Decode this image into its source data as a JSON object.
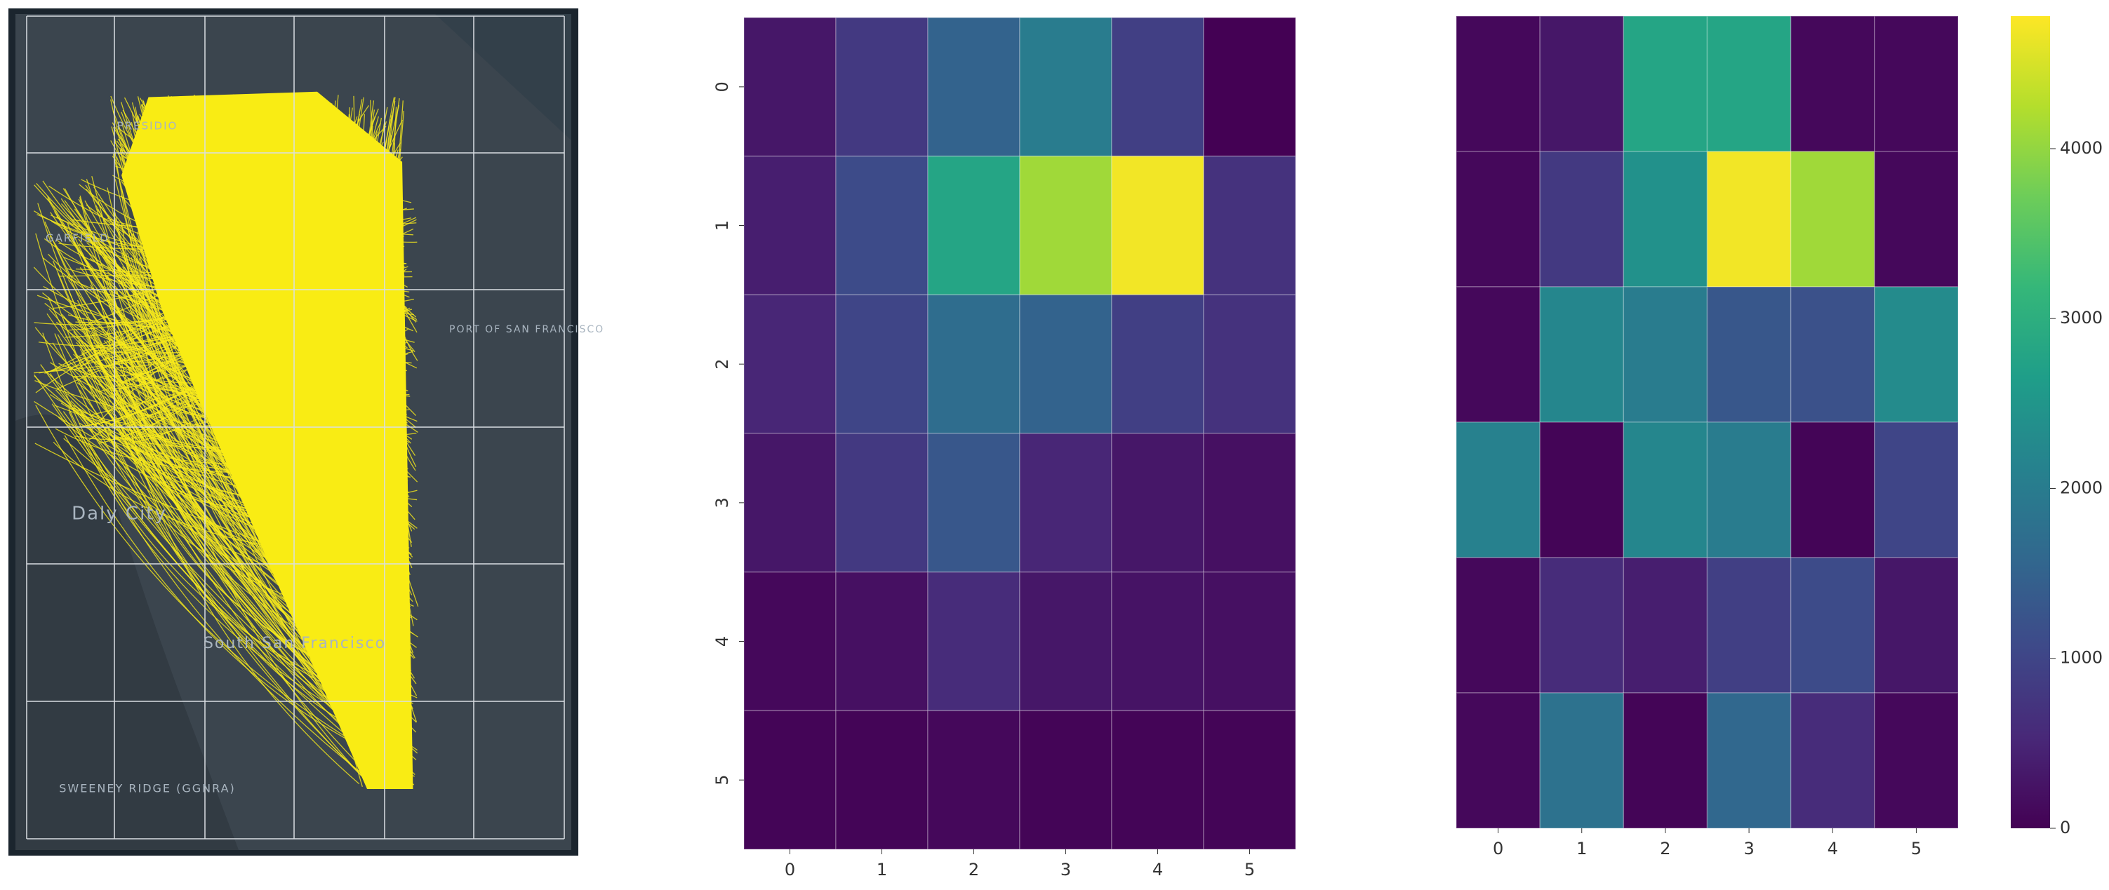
{
  "chart_data": [
    {
      "type": "map",
      "labels": [
        "PRESIDIO",
        "GARFIELD",
        "PORT OF SAN FRANCISCO",
        "Daly City",
        "South San Francisco",
        "SWEENEY RIDGE (GGNRA)"
      ]
    },
    {
      "type": "heatmap",
      "colormap": "viridis",
      "x": [
        0,
        1,
        2,
        3,
        4,
        5
      ],
      "y": [
        0,
        1,
        2,
        3,
        4,
        5
      ],
      "zlim": [
        0,
        4780
      ],
      "z": [
        [
          300,
          800,
          1500,
          2000,
          900,
          0
        ],
        [
          400,
          1100,
          2800,
          4100,
          4700,
          700
        ],
        [
          500,
          1000,
          1700,
          1500,
          900,
          700
        ],
        [
          300,
          800,
          1300,
          500,
          300,
          200
        ],
        [
          100,
          200,
          600,
          300,
          250,
          200
        ],
        [
          50,
          50,
          100,
          50,
          50,
          50
        ]
      ]
    },
    {
      "type": "heatmap",
      "colormap": "viridis",
      "colorbar": true,
      "x": [
        0,
        1,
        2,
        3,
        4,
        5
      ],
      "zlim": [
        0,
        4780
      ],
      "zticks": [
        0,
        1000,
        2000,
        3000,
        4000
      ],
      "z": [
        [
          100,
          300,
          2800,
          2800,
          100,
          100
        ],
        [
          100,
          800,
          2400,
          4700,
          4100,
          100
        ],
        [
          100,
          2200,
          2000,
          1300,
          1200,
          2300
        ],
        [
          2100,
          50,
          2200,
          2000,
          50,
          1000
        ],
        [
          100,
          600,
          400,
          900,
          1100,
          300
        ],
        [
          100,
          1800,
          50,
          1600,
          600,
          100
        ]
      ]
    }
  ]
}
